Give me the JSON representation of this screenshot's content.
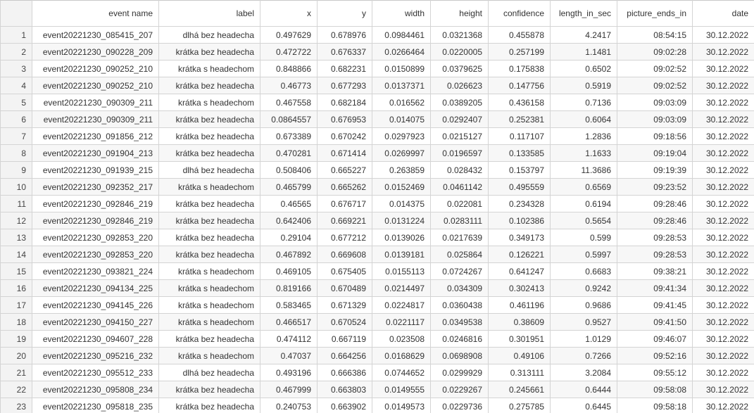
{
  "columns": [
    "",
    "event name",
    "label",
    "x",
    "y",
    "width",
    "height",
    "confidence",
    "length_in_sec",
    "picture_ends_in",
    "date"
  ],
  "rows": [
    [
      "1",
      "event20221230_085415_207",
      "dlhá bez headecha",
      "0.497629",
      "0.678976",
      "0.0984461",
      "0.0321368",
      "0.455878",
      "4.2417",
      "08:54:15",
      "30.12.2022"
    ],
    [
      "2",
      "event20221230_090228_209",
      "krátka bez headecha",
      "0.472722",
      "0.676337",
      "0.0266464",
      "0.0220005",
      "0.257199",
      "1.1481",
      "09:02:28",
      "30.12.2022"
    ],
    [
      "3",
      "event20221230_090252_210",
      "krátka s headechom",
      "0.848866",
      "0.682231",
      "0.0150899",
      "0.0379625",
      "0.175838",
      "0.6502",
      "09:02:52",
      "30.12.2022"
    ],
    [
      "4",
      "event20221230_090252_210",
      "krátka bez headecha",
      "0.46773",
      "0.677293",
      "0.0137371",
      "0.026623",
      "0.147756",
      "0.5919",
      "09:02:52",
      "30.12.2022"
    ],
    [
      "5",
      "event20221230_090309_211",
      "krátka s headechom",
      "0.467558",
      "0.682184",
      "0.016562",
      "0.0389205",
      "0.436158",
      "0.7136",
      "09:03:09",
      "30.12.2022"
    ],
    [
      "6",
      "event20221230_090309_211",
      "krátka bez headecha",
      "0.0864557",
      "0.676953",
      "0.014075",
      "0.0292407",
      "0.252381",
      "0.6064",
      "09:03:09",
      "30.12.2022"
    ],
    [
      "7",
      "event20221230_091856_212",
      "krátka bez headecha",
      "0.673389",
      "0.670242",
      "0.0297923",
      "0.0215127",
      "0.117107",
      "1.2836",
      "09:18:56",
      "30.12.2022"
    ],
    [
      "8",
      "event20221230_091904_213",
      "krátka bez headecha",
      "0.470281",
      "0.671414",
      "0.0269997",
      "0.0196597",
      "0.133585",
      "1.1633",
      "09:19:04",
      "30.12.2022"
    ],
    [
      "9",
      "event20221230_091939_215",
      "dlhá bez headecha",
      "0.508406",
      "0.665227",
      "0.263859",
      "0.028432",
      "0.153797",
      "11.3686",
      "09:19:39",
      "30.12.2022"
    ],
    [
      "10",
      "event20221230_092352_217",
      "krátka s headechom",
      "0.465799",
      "0.665262",
      "0.0152469",
      "0.0461142",
      "0.495559",
      "0.6569",
      "09:23:52",
      "30.12.2022"
    ],
    [
      "11",
      "event20221230_092846_219",
      "krátka bez headecha",
      "0.46565",
      "0.676717",
      "0.014375",
      "0.022081",
      "0.234328",
      "0.6194",
      "09:28:46",
      "30.12.2022"
    ],
    [
      "12",
      "event20221230_092846_219",
      "krátka bez headecha",
      "0.642406",
      "0.669221",
      "0.0131224",
      "0.0283111",
      "0.102386",
      "0.5654",
      "09:28:46",
      "30.12.2022"
    ],
    [
      "13",
      "event20221230_092853_220",
      "krátka bez headecha",
      "0.29104",
      "0.677212",
      "0.0139026",
      "0.0217639",
      "0.349173",
      "0.599",
      "09:28:53",
      "30.12.2022"
    ],
    [
      "14",
      "event20221230_092853_220",
      "krátka bez headecha",
      "0.467892",
      "0.669608",
      "0.0139181",
      "0.025864",
      "0.126221",
      "0.5997",
      "09:28:53",
      "30.12.2022"
    ],
    [
      "15",
      "event20221230_093821_224",
      "krátka s headechom",
      "0.469105",
      "0.675405",
      "0.0155113",
      "0.0724267",
      "0.641247",
      "0.6683",
      "09:38:21",
      "30.12.2022"
    ],
    [
      "16",
      "event20221230_094134_225",
      "krátka s headechom",
      "0.819166",
      "0.670489",
      "0.0214497",
      "0.034309",
      "0.302413",
      "0.9242",
      "09:41:34",
      "30.12.2022"
    ],
    [
      "17",
      "event20221230_094145_226",
      "krátka s headechom",
      "0.583465",
      "0.671329",
      "0.0224817",
      "0.0360438",
      "0.461196",
      "0.9686",
      "09:41:45",
      "30.12.2022"
    ],
    [
      "18",
      "event20221230_094150_227",
      "krátka s headechom",
      "0.466517",
      "0.670524",
      "0.0221117",
      "0.0349538",
      "0.38609",
      "0.9527",
      "09:41:50",
      "30.12.2022"
    ],
    [
      "19",
      "event20221230_094607_228",
      "krátka bez headecha",
      "0.474112",
      "0.667119",
      "0.023508",
      "0.0246816",
      "0.301951",
      "1.0129",
      "09:46:07",
      "30.12.2022"
    ],
    [
      "20",
      "event20221230_095216_232",
      "krátka s headechom",
      "0.47037",
      "0.664256",
      "0.0168629",
      "0.0698908",
      "0.49106",
      "0.7266",
      "09:52:16",
      "30.12.2022"
    ],
    [
      "21",
      "event20221230_095512_233",
      "dlhá bez headecha",
      "0.493196",
      "0.666386",
      "0.0744652",
      "0.0299929",
      "0.313111",
      "3.2084",
      "09:55:12",
      "30.12.2022"
    ],
    [
      "22",
      "event20221230_095808_234",
      "krátka bez headecha",
      "0.467999",
      "0.663803",
      "0.0149555",
      "0.0229267",
      "0.245661",
      "0.6444",
      "09:58:08",
      "30.12.2022"
    ],
    [
      "23",
      "event20221230_095818_235",
      "krátka bez headecha",
      "0.240753",
      "0.663902",
      "0.0149573",
      "0.0229736",
      "0.275785",
      "0.6445",
      "09:58:18",
      "30.12.2022"
    ]
  ]
}
